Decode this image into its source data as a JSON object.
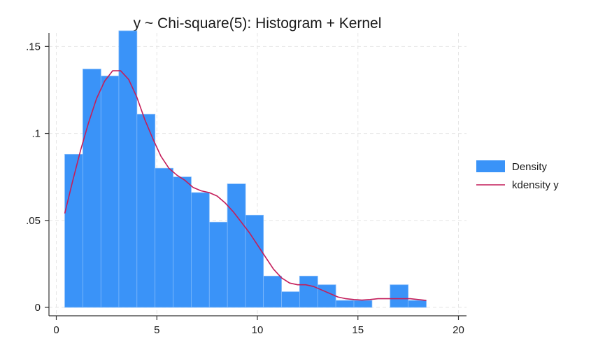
{
  "chart_data": {
    "type": "bar",
    "title": "y ~ Chi-square(5): Histogram + Kernel",
    "xlabel": "",
    "ylabel": "",
    "xlim": [
      0,
      20
    ],
    "ylim": [
      0,
      0.16
    ],
    "grid": true,
    "legend_position": "right",
    "x_ticks": [
      {
        "value": 0,
        "label": "0"
      },
      {
        "value": 5,
        "label": "5"
      },
      {
        "value": 10,
        "label": "10"
      },
      {
        "value": 15,
        "label": "15"
      },
      {
        "value": 20,
        "label": "20"
      }
    ],
    "y_ticks": [
      {
        "value": 0,
        "label": "0"
      },
      {
        "value": 0.05,
        "label": ".05"
      },
      {
        "value": 0.1,
        "label": ".1"
      },
      {
        "value": 0.15,
        "label": ".15"
      }
    ],
    "series": [
      {
        "name": "Density",
        "type": "histogram",
        "color": "#3a93f8",
        "bin_edges": [
          0.42,
          1.32,
          2.22,
          3.11,
          4.01,
          4.91,
          5.81,
          6.71,
          7.61,
          8.51,
          9.41,
          10.3,
          11.2,
          12.1,
          13.0,
          13.9,
          14.8,
          15.7,
          16.6,
          17.5,
          18.4
        ],
        "values": [
          0.088,
          0.137,
          0.133,
          0.159,
          0.111,
          0.08,
          0.075,
          0.066,
          0.049,
          0.071,
          0.053,
          0.018,
          0.009,
          0.018,
          0.013,
          0.004,
          0.004,
          0.0,
          0.013,
          0.004
        ]
      },
      {
        "name": "kdensity y",
        "type": "line",
        "color": "#c41e5a",
        "x": [
          0.42,
          0.8,
          1.2,
          1.6,
          2.0,
          2.4,
          2.8,
          3.2,
          3.6,
          4.0,
          4.4,
          4.8,
          5.2,
          5.6,
          6.0,
          6.4,
          6.8,
          7.2,
          7.6,
          8.0,
          8.4,
          8.8,
          9.2,
          9.6,
          10.0,
          10.4,
          10.8,
          11.2,
          11.6,
          12.0,
          12.4,
          12.8,
          13.2,
          13.6,
          14.0,
          14.4,
          14.8,
          15.2,
          15.6,
          16.0,
          16.4,
          16.8,
          17.2,
          17.6,
          18.0,
          18.4
        ],
        "y": [
          0.054,
          0.072,
          0.09,
          0.106,
          0.12,
          0.13,
          0.136,
          0.136,
          0.131,
          0.121,
          0.108,
          0.097,
          0.087,
          0.08,
          0.076,
          0.073,
          0.069,
          0.067,
          0.066,
          0.064,
          0.06,
          0.055,
          0.049,
          0.043,
          0.036,
          0.029,
          0.022,
          0.017,
          0.014,
          0.013,
          0.013,
          0.012,
          0.01,
          0.008,
          0.006,
          0.005,
          0.0045,
          0.0042,
          0.0045,
          0.005,
          0.005,
          0.005,
          0.005,
          0.005,
          0.0045,
          0.004
        ]
      }
    ]
  }
}
